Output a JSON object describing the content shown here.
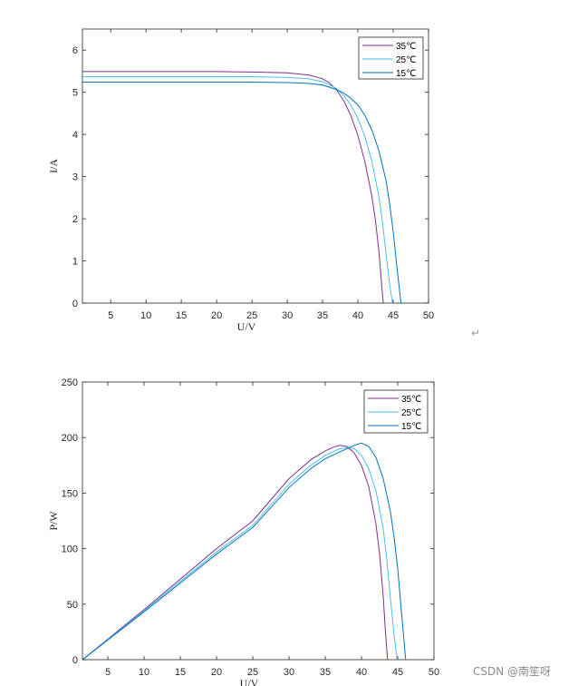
{
  "return_mark": "↵",
  "watermark": "CSDN @南笙呀",
  "colors": {
    "35": "#7e2f8e",
    "25": "#4dbeee",
    "15": "#0072bd"
  },
  "chart_data": [
    {
      "type": "line",
      "xlabel": "U/V",
      "ylabel": "I/A",
      "xlim": [
        1,
        50
      ],
      "ylim": [
        0,
        6.5
      ],
      "xticks": [
        5,
        10,
        15,
        20,
        25,
        30,
        35,
        40,
        45,
        50
      ],
      "yticks": [
        0,
        1,
        2,
        3,
        4,
        5,
        6
      ],
      "legend": "top-right",
      "series": [
        {
          "name": "35℃",
          "color_key": "35",
          "x": [
            1,
            10,
            20,
            25,
            30,
            33,
            35,
            36,
            37,
            38,
            39,
            40,
            41,
            42,
            42.5,
            43,
            43.3,
            43.6
          ],
          "y": [
            5.49,
            5.49,
            5.49,
            5.48,
            5.46,
            5.41,
            5.32,
            5.22,
            5.05,
            4.8,
            4.45,
            3.98,
            3.35,
            2.52,
            1.95,
            1.2,
            0.55,
            0.0
          ]
        },
        {
          "name": "25℃",
          "color_key": "25",
          "x": [
            1,
            10,
            20,
            25,
            30,
            33,
            35,
            36,
            37,
            38,
            39,
            40,
            41,
            42,
            43,
            43.5,
            44,
            44.5,
            44.9
          ],
          "y": [
            5.37,
            5.37,
            5.37,
            5.37,
            5.35,
            5.32,
            5.25,
            5.18,
            5.08,
            4.92,
            4.7,
            4.38,
            3.95,
            3.35,
            2.5,
            1.9,
            1.15,
            0.45,
            0.0
          ]
        },
        {
          "name": "15℃",
          "color_key": "15",
          "x": [
            1,
            10,
            20,
            25,
            30,
            33,
            35,
            36,
            37,
            38,
            39,
            40,
            41,
            42,
            43,
            44,
            44.5,
            45,
            45.5,
            46.1
          ],
          "y": [
            5.24,
            5.24,
            5.24,
            5.24,
            5.23,
            5.21,
            5.17,
            5.12,
            5.06,
            4.98,
            4.86,
            4.7,
            4.45,
            4.1,
            3.6,
            2.9,
            2.35,
            1.7,
            0.9,
            0.0
          ]
        }
      ]
    },
    {
      "type": "line",
      "xlabel": "U/V",
      "ylabel": "P/W",
      "xlim": [
        1.5,
        50
      ],
      "ylim": [
        0,
        250
      ],
      "xticks": [
        5,
        10,
        15,
        20,
        25,
        30,
        35,
        40,
        45,
        50
      ],
      "yticks": [
        0,
        50,
        100,
        150,
        200,
        250
      ],
      "legend": "top-right",
      "series": [
        {
          "name": "35℃",
          "color_key": "35",
          "x": [
            1.5,
            10,
            20,
            25,
            30,
            33,
            35,
            36,
            37,
            38,
            39,
            40,
            41,
            42,
            42.5,
            43,
            43.3,
            43.6
          ],
          "y": [
            0,
            45,
            100,
            125,
            163,
            180,
            188,
            191,
            193,
            192,
            186,
            175,
            156,
            122,
            95,
            57,
            26,
            0
          ]
        },
        {
          "name": "25℃",
          "color_key": "25",
          "x": [
            1.5,
            10,
            20,
            25,
            30,
            33,
            35,
            36,
            37,
            38,
            39,
            40,
            41,
            42,
            43,
            43.5,
            44,
            44.5,
            44.9
          ],
          "y": [
            0,
            44,
            97,
            121,
            158,
            175,
            184,
            187,
            190,
            191,
            190,
            184,
            172,
            152,
            118,
            90,
            55,
            22,
            0
          ]
        },
        {
          "name": "15℃",
          "color_key": "15",
          "x": [
            1.5,
            10,
            20,
            25,
            30,
            33,
            35,
            36,
            37,
            38,
            39,
            40,
            41,
            42,
            43,
            44,
            44.5,
            45,
            45.5,
            46.1
          ],
          "y": [
            0,
            43,
            95,
            119,
            155,
            172,
            181,
            184,
            187,
            190,
            193,
            195,
            192,
            182,
            163,
            133,
            110,
            82,
            44,
            0
          ]
        }
      ]
    }
  ]
}
